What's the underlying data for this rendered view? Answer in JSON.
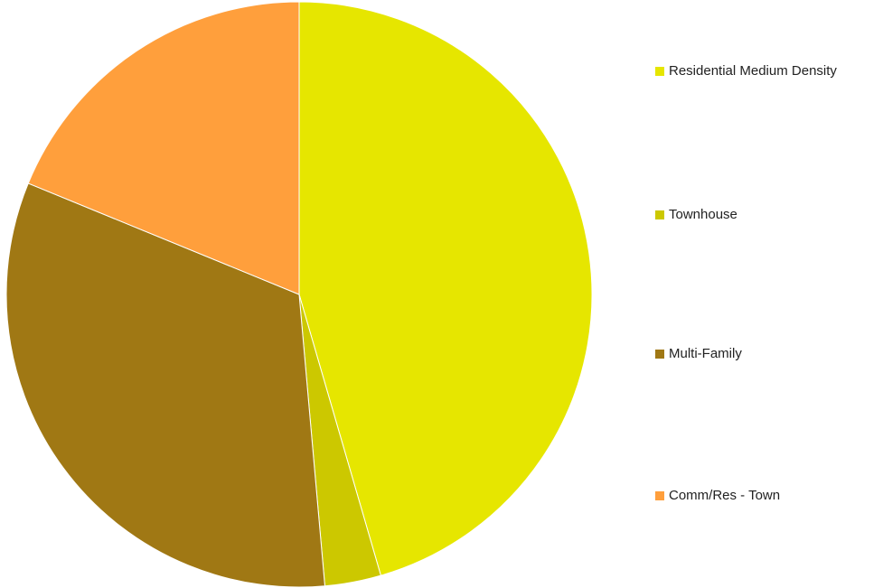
{
  "chart_data": {
    "type": "pie",
    "title": "",
    "legend_position": "right",
    "slices": [
      {
        "label": "Residential Medium Density",
        "value": 45.5,
        "color": "#E6E600"
      },
      {
        "label": "Townhouse",
        "value": 3.1,
        "color": "#CCC800"
      },
      {
        "label": "Multi-Family",
        "value": 32.6,
        "color": "#A07814"
      },
      {
        "label": "Comm/Res - Town",
        "value": 18.8,
        "color": "#FF9F3C"
      }
    ]
  }
}
